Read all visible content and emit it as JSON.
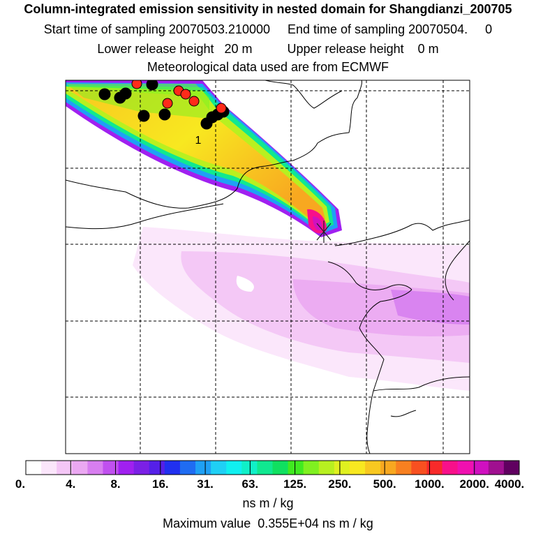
{
  "header": {
    "title": "Column-integrated emission sensitivity in nested domain for Shangdianzi_200705",
    "sampling_line": "Start time of sampling 20070503.210000     End time of sampling 20070504.     0",
    "release_line": "Lower release height   20 m          Upper release height    0 m",
    "met_line": "Meteorological data used are from ECMWF"
  },
  "map": {
    "plume_label": "1",
    "point_colors": {
      "black": "#000000",
      "red": "#ff2a1a"
    }
  },
  "colorbar": {
    "labels": [
      "0.",
      "4.",
      "8.",
      "16.",
      "31.",
      "63.",
      "125.",
      "250.",
      "500.",
      "1000.",
      "2000.",
      "4000."
    ],
    "colors": [
      "#ffffff",
      "#fbe6fb",
      "#f4c6f6",
      "#eba8f2",
      "#d87ef0",
      "#c050ef",
      "#a020f0",
      "#7b20e6",
      "#5520e8",
      "#2030f0",
      "#1f6cf2",
      "#1fa0f5",
      "#1fd0f5",
      "#10f0f0",
      "#10f0c8",
      "#10e890",
      "#10e060",
      "#40ea20",
      "#80f020",
      "#b8f020",
      "#e0f020",
      "#f8e820",
      "#f8c820",
      "#f8a820",
      "#f88020",
      "#f85020",
      "#f82a2a",
      "#f8108a",
      "#f010b0",
      "#d010c0",
      "#a01090",
      "#600060"
    ],
    "units": "ns m / kg"
  },
  "footer": {
    "max_value": "Maximum value  0.355E+04 ns m / kg"
  }
}
